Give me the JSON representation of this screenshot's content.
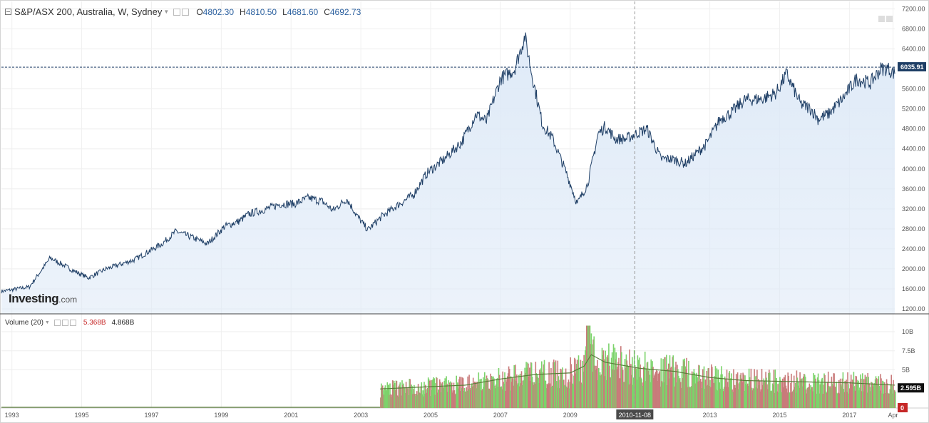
{
  "header": {
    "title": "S&P/ASX 200, Australia, W, Sydney",
    "open_label": "O",
    "open": "4802.30",
    "high_label": "H",
    "high": "4810.50",
    "low_label": "L",
    "low": "4681.60",
    "close_label": "C",
    "close": "4692.73"
  },
  "volume_legend": {
    "title": "Volume (20)",
    "value1": "5.368B",
    "value2": "4.868B"
  },
  "logo": {
    "main": "Investing",
    "suffix": ".com"
  },
  "colors": {
    "line": "#1f3f66",
    "area": "#dde9f7",
    "up": "#7cd36b",
    "down": "#c97b7b",
    "ma": "#5a7d3a",
    "price_badge": "#1f3f66",
    "vol_badge": "#111111",
    "zero_badge": "#c62828"
  },
  "chart_data": [
    {
      "type": "area",
      "title": "S&P/ASX 200, Australia, W, Sydney",
      "x": [
        1992.7,
        1993.5,
        1994.1,
        1994.8,
        1995.2,
        1995.7,
        1996.5,
        1997.3,
        1997.7,
        1998.2,
        1998.6,
        1999.1,
        1999.5,
        1999.8,
        2000.3,
        2000.7,
        2001.1,
        2001.5,
        2001.9,
        2002.2,
        2002.6,
        2002.9,
        2003.2,
        2003.6,
        2004.0,
        2004.5,
        2004.9,
        2005.4,
        2005.9,
        2006.3,
        2006.6,
        2007.0,
        2007.4,
        2007.7,
        2007.9,
        2008.2,
        2008.5,
        2008.9,
        2009.2,
        2009.5,
        2009.8,
        2010.0,
        2010.3,
        2010.6,
        2010.9,
        2011.2,
        2011.6,
        2011.9,
        2012.3,
        2012.6,
        2012.9,
        2013.3,
        2013.6,
        2014.0,
        2014.5,
        2014.9,
        2015.2,
        2015.6,
        2015.9,
        2016.1,
        2016.4,
        2016.8,
        2017.2,
        2017.6,
        2017.9,
        2018.1,
        2018.3
      ],
      "y": [
        1550,
        1640,
        2220,
        1950,
        1820,
        2000,
        2180,
        2500,
        2750,
        2620,
        2500,
        2850,
        2950,
        3100,
        3200,
        3300,
        3300,
        3420,
        3350,
        3170,
        3400,
        3050,
        2780,
        3050,
        3250,
        3480,
        3920,
        4200,
        4550,
        5100,
        4950,
        5800,
        5990,
        6650,
        5900,
        4900,
        4600,
        3900,
        3300,
        3700,
        4700,
        4850,
        4600,
        4600,
        4710,
        4800,
        4200,
        4200,
        4110,
        4300,
        4500,
        5000,
        5120,
        5380,
        5400,
        5520,
        5900,
        5300,
        5200,
        5000,
        5100,
        5400,
        5800,
        5720,
        6000,
        6010,
        5900
      ],
      "ylim": [
        1100,
        7350
      ],
      "yticks": [
        1200,
        1600,
        2000,
        2400,
        2800,
        3200,
        3600,
        4000,
        4400,
        4800,
        5200,
        5600,
        6000,
        6400,
        6800,
        7200
      ],
      "ytick_labels": [
        "1200.00",
        "1600.00",
        "2000.00",
        "2400.00",
        "2800.00",
        "3200.00",
        "3600.00",
        "4000.00",
        "4400.00",
        "4800.00",
        "5200.00",
        "5600.00",
        "6000.00",
        "6400.00",
        "6800.00",
        "7200.00"
      ],
      "last_value": 6035.91,
      "last_value_label": "6035.91",
      "grid": true
    },
    {
      "type": "bar",
      "title": "Volume (20)",
      "volume_start": 2003.55,
      "x_end": 2018.3,
      "volume_envelope_x": [
        2003.55,
        2004.5,
        2006.0,
        2007.0,
        2008.0,
        2009.0,
        2009.4,
        2009.6,
        2010.0,
        2011.0,
        2012.0,
        2013.0,
        2014.0,
        2015.0,
        2016.0,
        2017.0,
        2018.3
      ],
      "volume_envelope_b": [
        2.5,
        2.7,
        3.0,
        3.8,
        4.4,
        4.6,
        5.5,
        7.0,
        6.0,
        5.2,
        4.8,
        4.0,
        3.6,
        3.5,
        3.4,
        3.3,
        3.0
      ],
      "peak_volume_b": 10.8,
      "ylim": [
        0,
        11.5
      ],
      "yticks": [
        5,
        7.5,
        10
      ],
      "ytick_labels": [
        "5B",
        "7.5B",
        "10B"
      ],
      "last_value_label": "2.595B",
      "zero_label": "0"
    }
  ],
  "xaxis": {
    "ticks": [
      1993,
      1995,
      1997,
      1999,
      2001,
      2003,
      2005,
      2007,
      2009,
      2013,
      2015,
      2017,
      2018.25
    ],
    "tick_labels": [
      "1993",
      "1995",
      "1997",
      "1999",
      "2001",
      "2003",
      "2005",
      "2007",
      "2009",
      "2013",
      "2015",
      "2017",
      "Apr"
    ],
    "crosshair_x": 2010.85,
    "crosshair_label": "2010-11-08"
  }
}
